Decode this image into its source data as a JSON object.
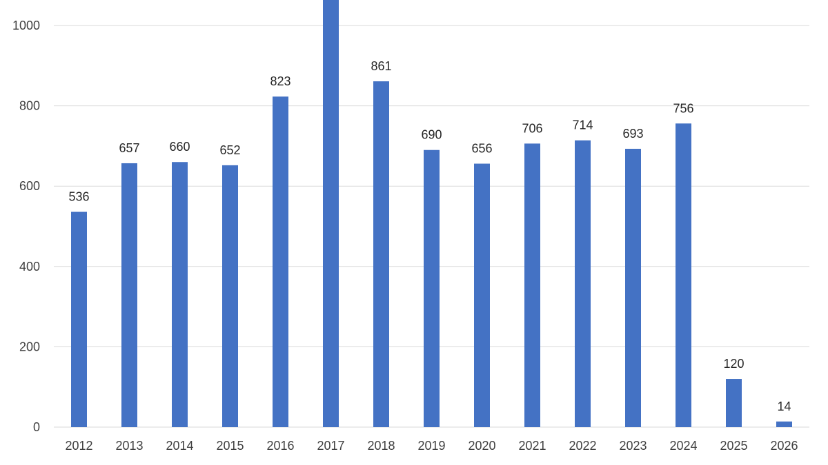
{
  "chart_data": {
    "type": "bar",
    "categories": [
      "2012",
      "2013",
      "2014",
      "2015",
      "2016",
      "2017",
      "2018",
      "2019",
      "2020",
      "2021",
      "2022",
      "2023",
      "2024",
      "2025",
      "2026"
    ],
    "values": [
      536,
      657,
      660,
      652,
      823,
      1075,
      861,
      690,
      656,
      706,
      714,
      693,
      756,
      120,
      14
    ],
    "data_labels": [
      "536",
      "657",
      "660",
      "652",
      "823",
      "",
      "861",
      "690",
      "656",
      "706",
      "714",
      "693",
      "756",
      "120",
      "14"
    ],
    "yticks": [
      0,
      200,
      400,
      600,
      800,
      1000
    ],
    "ylim": [
      0,
      1000
    ],
    "grid": true,
    "title": "",
    "xlabel": "",
    "ylabel": "",
    "colors": {
      "bar": "#4472c4",
      "grid": "#d9d9d9",
      "text": "#404040"
    }
  }
}
